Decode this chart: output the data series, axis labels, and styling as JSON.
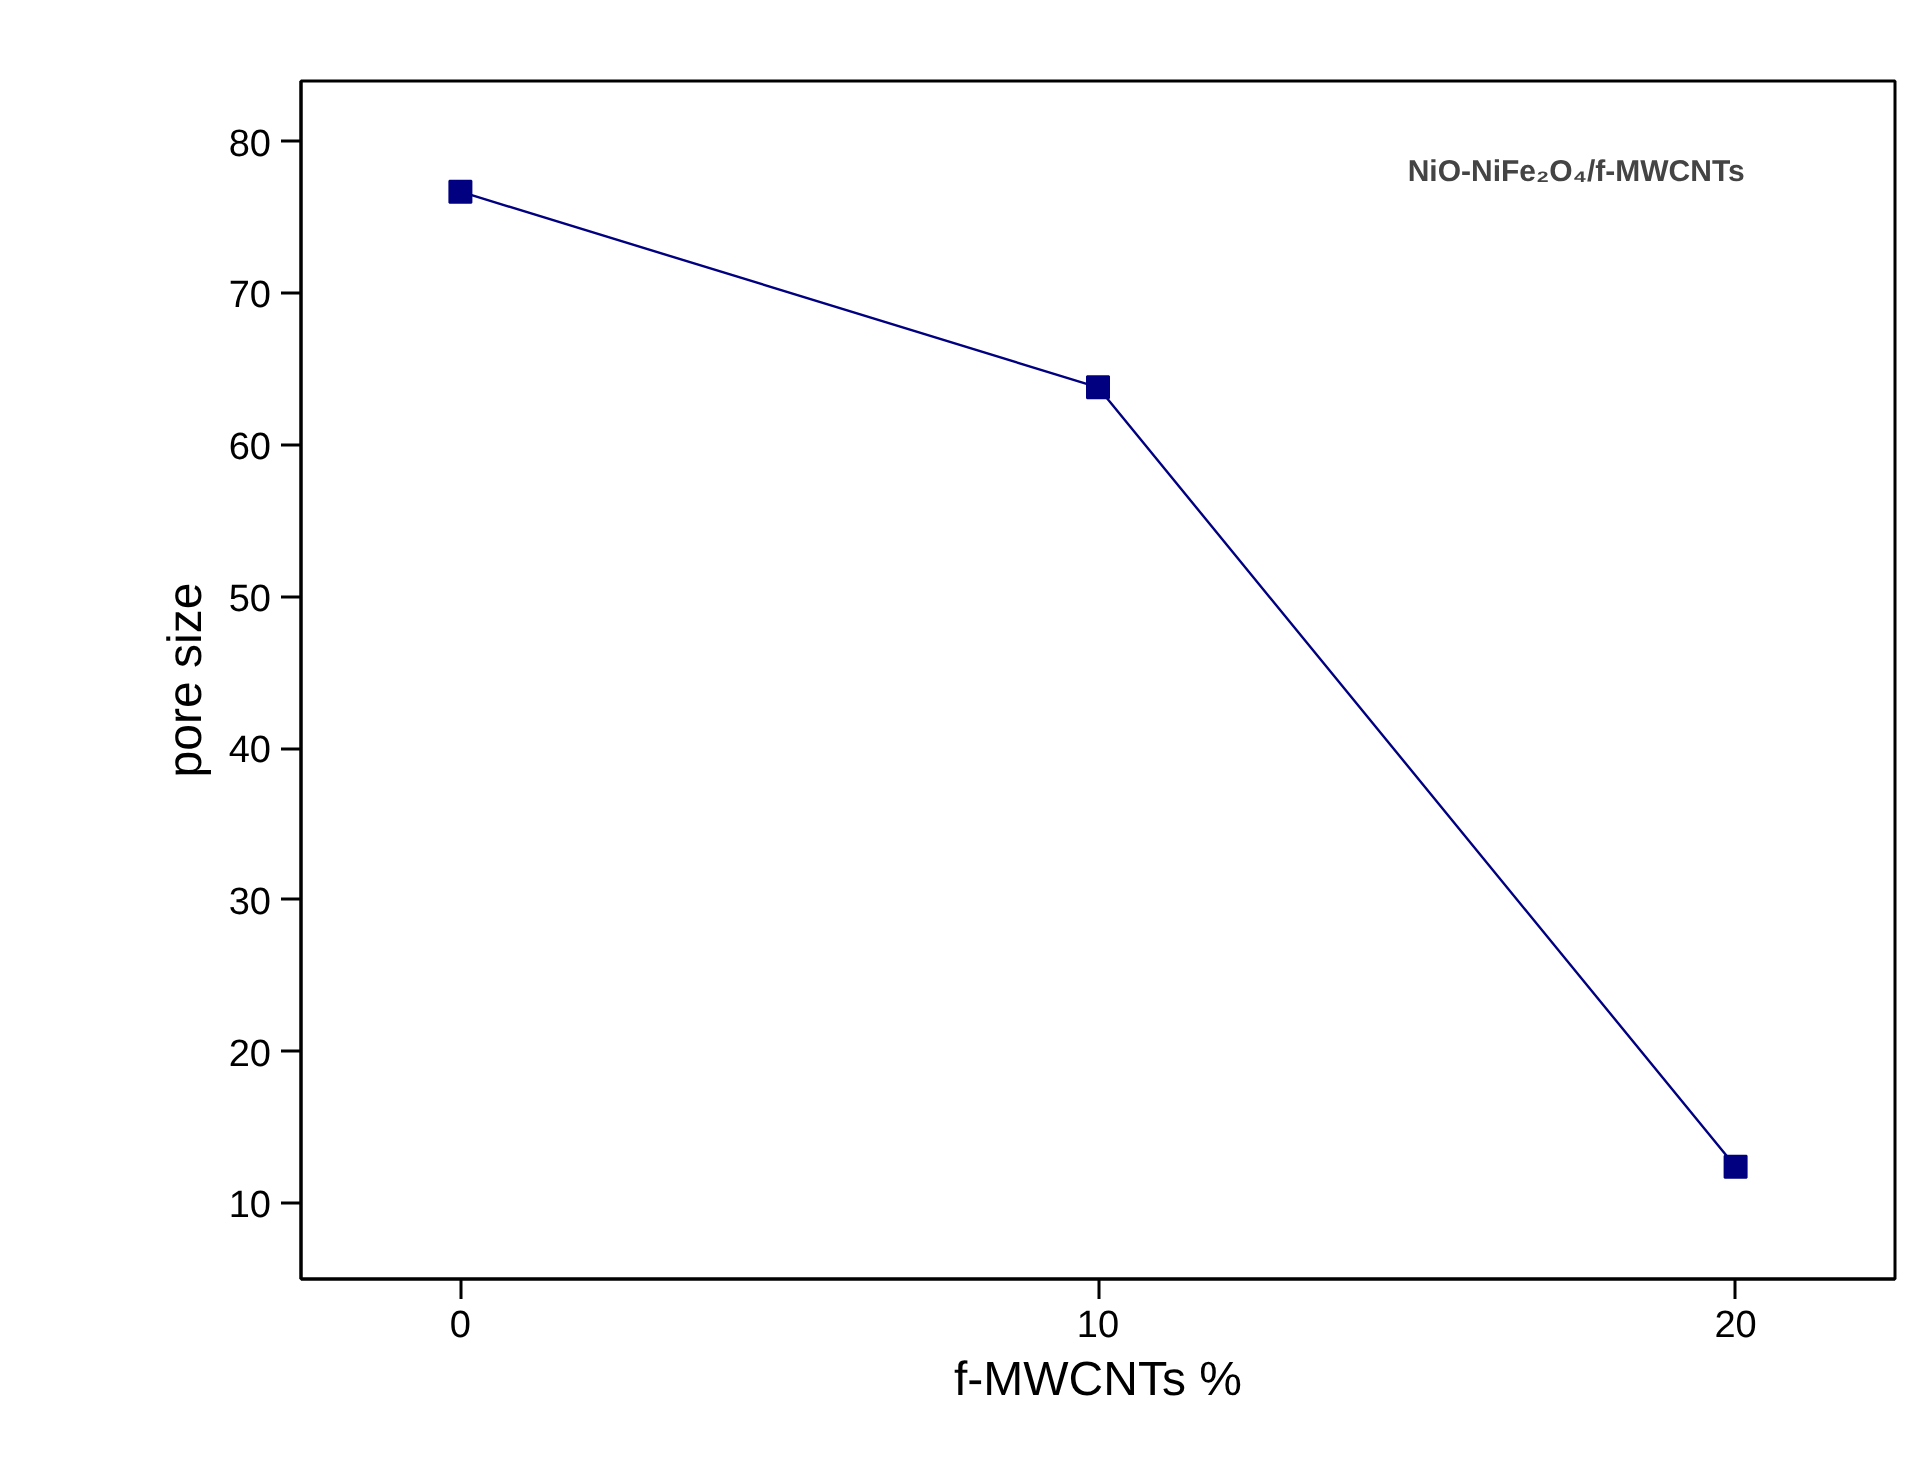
{
  "chart_data": {
    "type": "line",
    "xlabel": "f-MWCNTs %",
    "ylabel": "pore size",
    "annotations": [
      "NiO-NiFe₂O₄/f-MWCNTs"
    ],
    "x": [
      0,
      10,
      20
    ],
    "series": [
      {
        "color": "#000080",
        "values": [
          76.7,
          63.8,
          12.4
        ]
      }
    ],
    "xlim": [
      -2.5,
      22.5
    ],
    "xticks": [
      0,
      10,
      20
    ],
    "ylim": [
      5,
      84
    ],
    "yticks": [
      10,
      20,
      30,
      40,
      50,
      60,
      70,
      80
    ],
    "marker": "square",
    "line_style": "solid",
    "grid": false
  }
}
